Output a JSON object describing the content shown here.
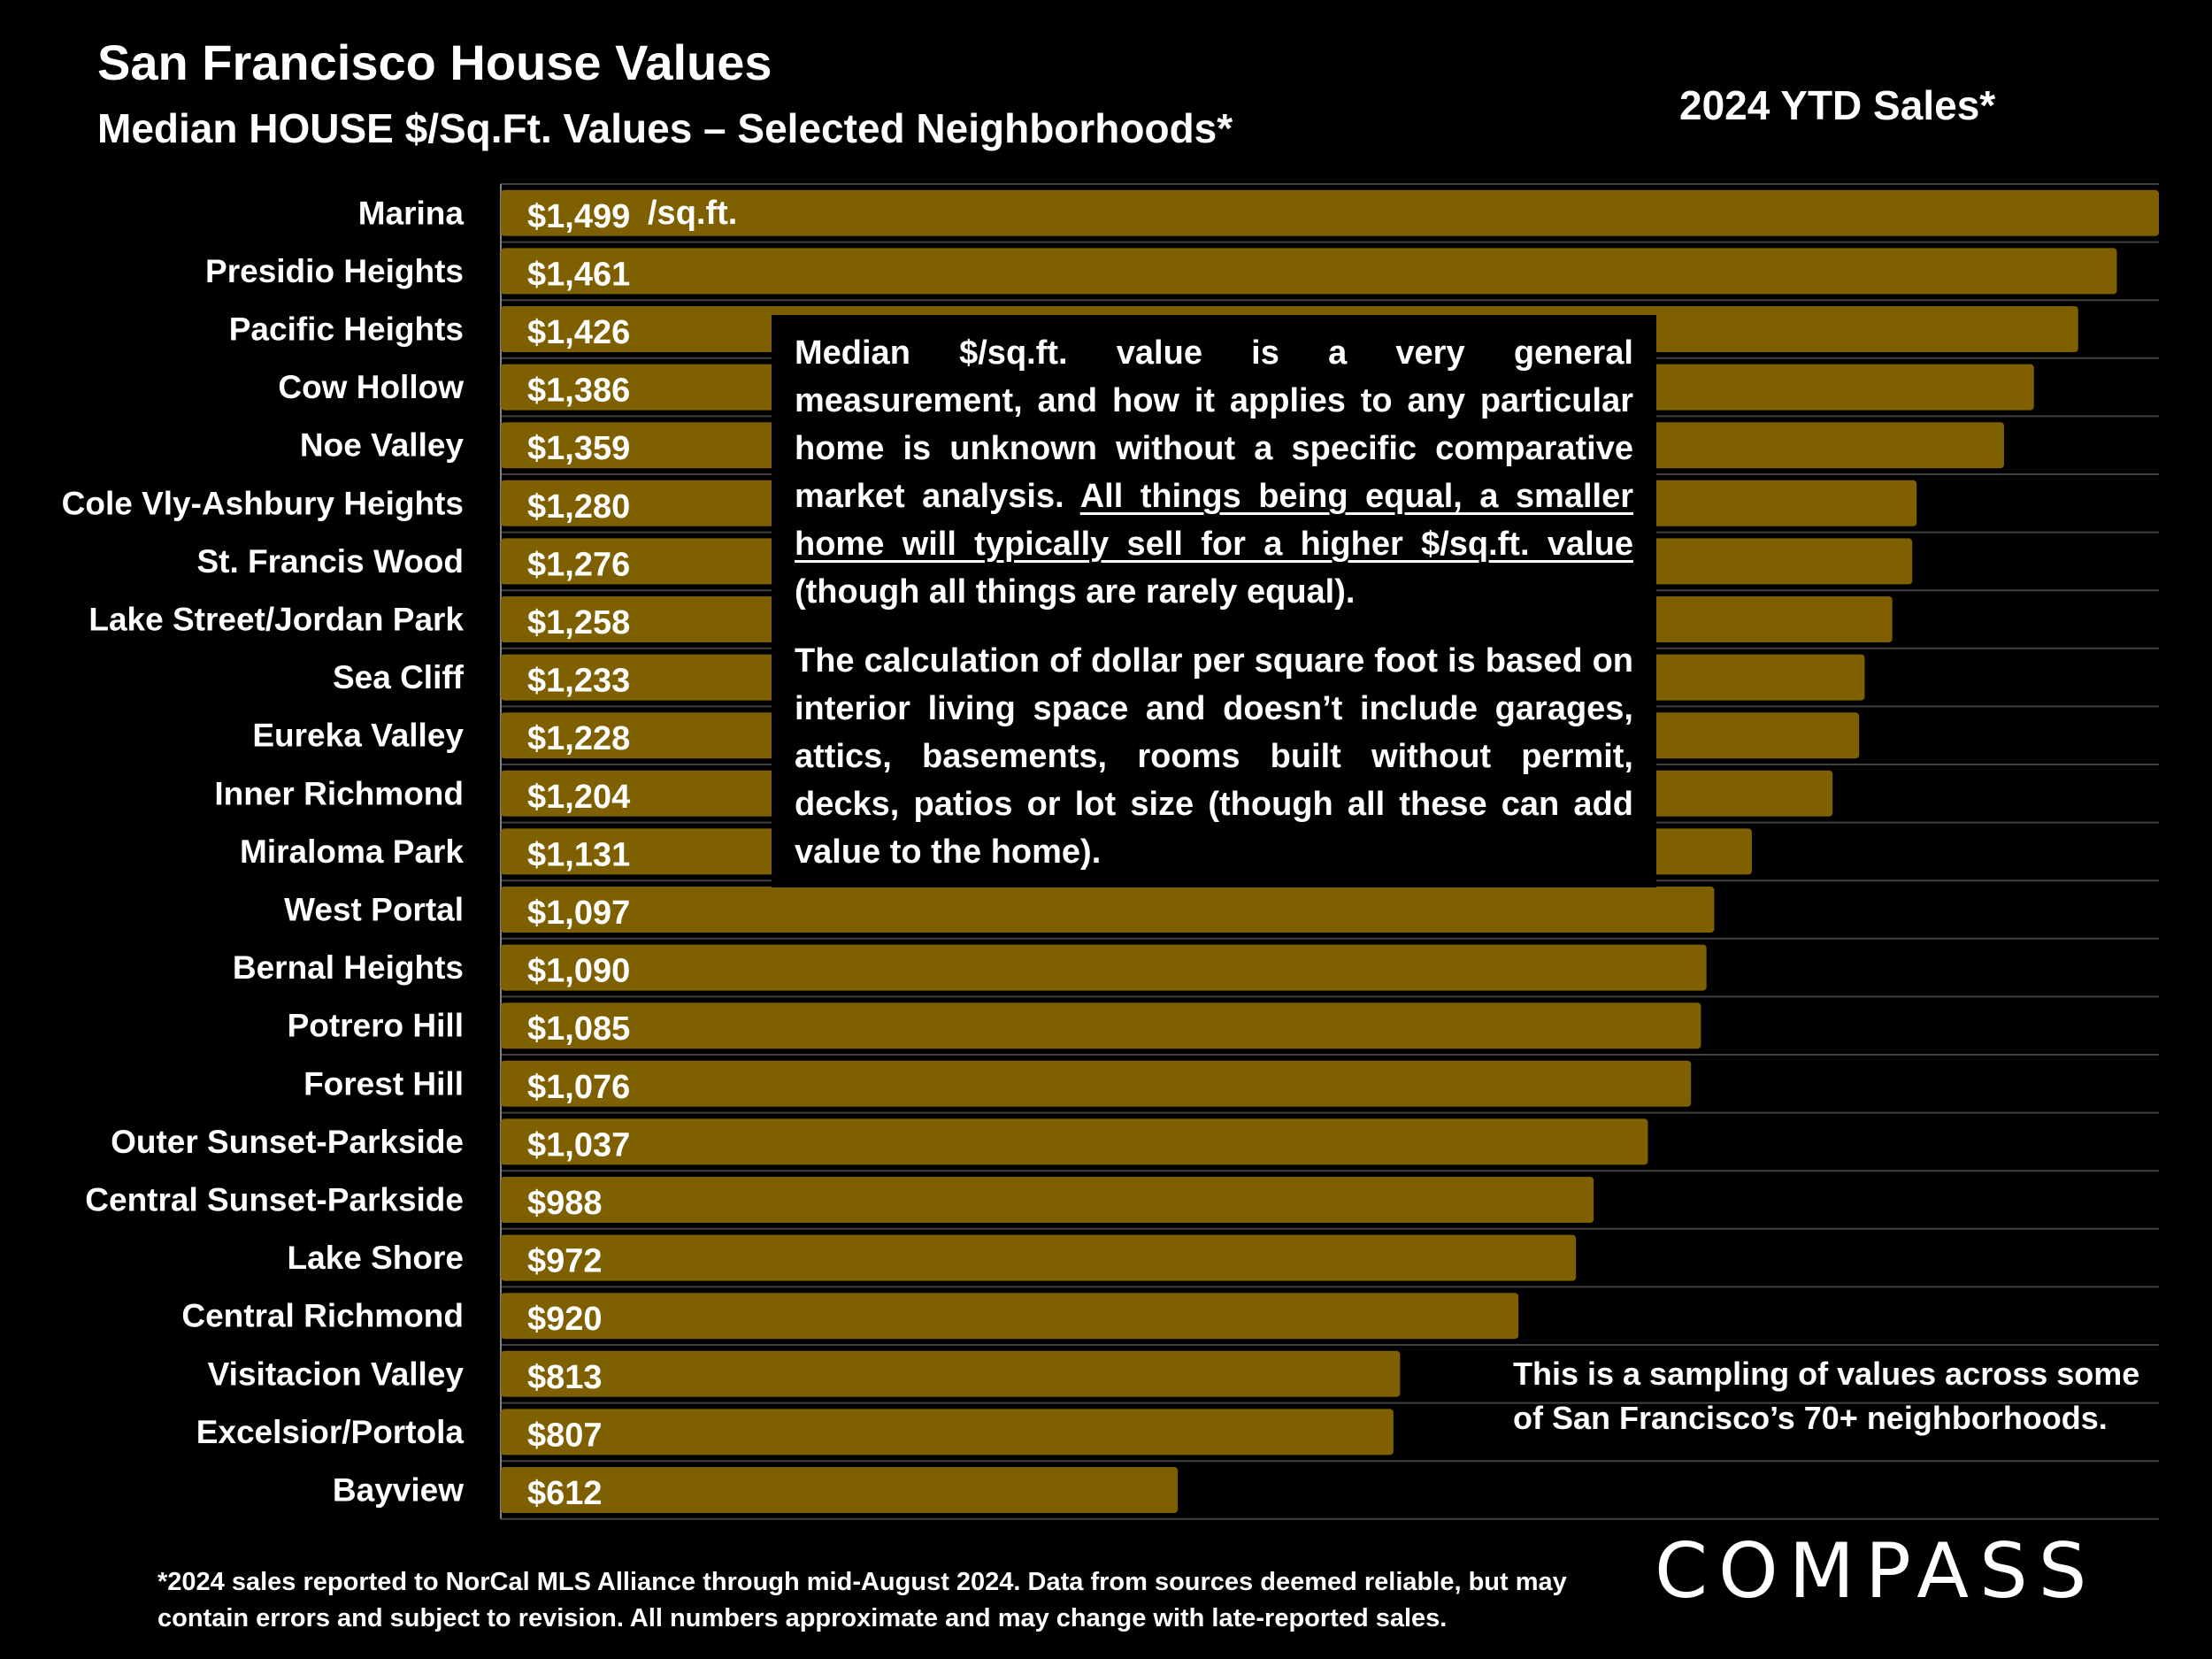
{
  "header": {
    "title": "San Francisco House Values",
    "subtitle": "Median HOUSE $/Sq.Ft. Values – Selected Neighborhoods*",
    "period": "2024 YTD Sales*"
  },
  "colors": {
    "bar": "#7f6000",
    "background": "#000000",
    "grid": "#404040",
    "text": "#ffffff"
  },
  "chart_data": {
    "type": "bar",
    "orientation": "horizontal",
    "title": "Median HOUSE $/Sq.Ft. Values – Selected Neighborhoods*",
    "xlim": [
      0,
      1499
    ],
    "unit_label": "/sq.ft.",
    "categories": [
      "Marina",
      "Presidio Heights",
      "Pacific Heights",
      "Cow Hollow",
      "Noe Valley",
      "Cole Vly-Ashbury Heights",
      "St. Francis Wood",
      "Lake Street/Jordan Park",
      "Sea Cliff",
      "Eureka Valley",
      "Inner Richmond",
      "Miraloma Park",
      "West Portal",
      "Bernal Heights",
      "Potrero Hill",
      "Forest Hill",
      "Outer Sunset-Parkside",
      "Central Sunset-Parkside",
      "Lake Shore",
      "Central Richmond",
      "Visitacion Valley",
      "Excelsior/Portola",
      "Bayview"
    ],
    "values": [
      1499,
      1461,
      1426,
      1386,
      1359,
      1280,
      1276,
      1258,
      1233,
      1228,
      1204,
      1131,
      1097,
      1090,
      1085,
      1076,
      1037,
      988,
      972,
      920,
      813,
      807,
      612
    ],
    "labels": [
      "$1,499",
      "$1,461",
      "$1,426",
      "$1,386",
      "$1,359",
      "$1,280",
      "$1,276",
      "$1,258",
      "$1,233",
      "$1,228",
      "$1,204",
      "$1,131",
      "$1,097",
      "$1,090",
      "$1,085",
      "$1,076",
      "$1,037",
      "$988",
      "$972",
      "$920",
      "$813",
      "$807",
      "$612"
    ]
  },
  "note": {
    "p1_text": "Median $/sq.ft. value is a very general measurement, and how it applies to any particular home is unknown without a specific comparative market analysis. ",
    "p1_underlined": "All things being equal, a smaller home will typically sell for a higher $/sq.ft. value",
    "p1_tail": " (though all things are rarely equal).",
    "p2": "The calculation of dollar per square foot is based on interior living space and doesn’t include garages, attics, basements, rooms built without permit, decks, patios or lot size (though all these can add value to the home)."
  },
  "sampling_note": "This is a sampling of values across some of San Francisco’s 70+ neighborhoods.",
  "footnote": "*2024 sales reported to NorCal MLS Alliance through mid-August 2024. Data from sources deemed reliable, but may contain errors and subject to revision. All numbers approximate and may change with late-reported sales.",
  "logo": "COMPASS"
}
